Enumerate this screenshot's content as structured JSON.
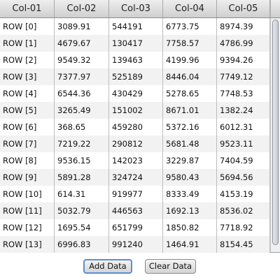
{
  "table": {
    "columns": [
      "Col-01",
      "Col-02",
      "Col-03",
      "Col-04",
      "Col-05"
    ],
    "rows": [
      [
        "ROW [0]",
        "3089.91",
        "544191",
        "6773.75",
        "8974.39"
      ],
      [
        "ROW [1]",
        "4679.67",
        "130417",
        "7758.57",
        "4786.99"
      ],
      [
        "ROW [2]",
        "9549.32",
        "139463",
        "4199.96",
        "9394.26"
      ],
      [
        "ROW [3]",
        "7377.97",
        "525189",
        "8446.04",
        "7749.12"
      ],
      [
        "ROW [4]",
        "6544.36",
        "430429",
        "5278.65",
        "7748.53"
      ],
      [
        "ROW [5]",
        "3265.49",
        "151002",
        "8671.01",
        "1382.24"
      ],
      [
        "ROW [6]",
        "368.65",
        "459280",
        "5372.16",
        "6012.31"
      ],
      [
        "ROW [7]",
        "7219.22",
        "290812",
        "5681.48",
        "9523.11"
      ],
      [
        "ROW [8]",
        "9536.15",
        "142023",
        "3229.87",
        "7404.59"
      ],
      [
        "ROW [9]",
        "5891.28",
        "324724",
        "9580.43",
        "5694.56"
      ],
      [
        "ROW [10]",
        "614.31",
        "919977",
        "8333.49",
        "4153.19"
      ],
      [
        "ROW [11]",
        "5032.79",
        "446563",
        "1692.13",
        "8536.02"
      ],
      [
        "ROW [12]",
        "1695.54",
        "651799",
        "1850.82",
        "7718.92"
      ],
      [
        "ROW [13]",
        "6996.83",
        "991240",
        "1464.91",
        "8154.45"
      ]
    ]
  },
  "buttons": {
    "add_label": "Add Data",
    "clear_label": "Clear Data"
  },
  "colors": {
    "header_top": "#eeeeee",
    "header_bottom": "#cfcfcf",
    "row_alt": "#f2f2f2",
    "focus_ring": "#5a8fd6"
  }
}
